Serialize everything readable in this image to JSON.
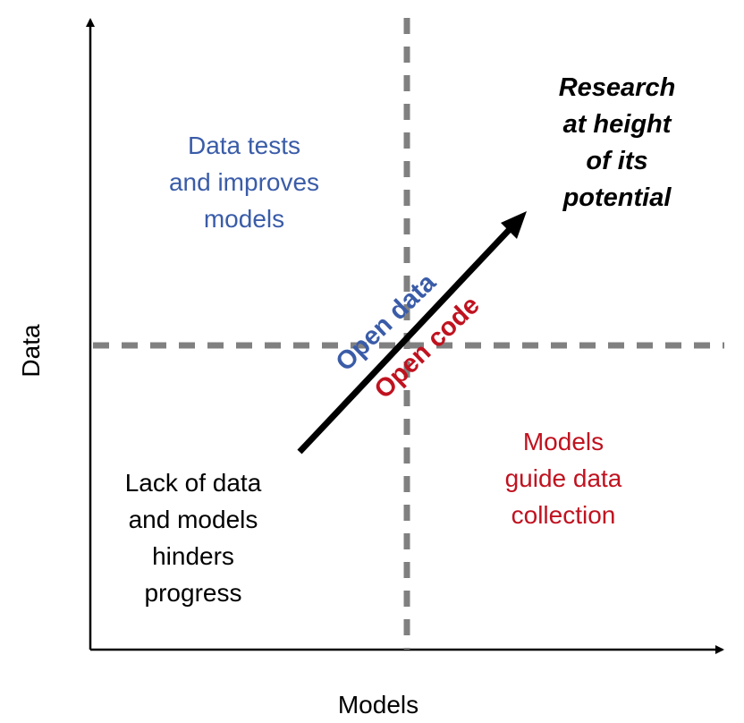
{
  "axes": {
    "x_label": "Models",
    "y_label": "Data"
  },
  "quadrants": {
    "top_left": [
      "Data tests",
      "and improves",
      "models"
    ],
    "top_right": [
      "Research",
      "at height",
      "of its",
      "potential"
    ],
    "bottom_left": [
      "Lack of data",
      "and models",
      "hinders",
      "progress"
    ],
    "bottom_right": [
      "Models",
      "guide data",
      "collection"
    ]
  },
  "arrow_labels": {
    "upper": "Open data",
    "lower": "Open code"
  },
  "colors": {
    "blue": "#3a5ca8",
    "red": "#c0121f",
    "divider": "#808080"
  }
}
